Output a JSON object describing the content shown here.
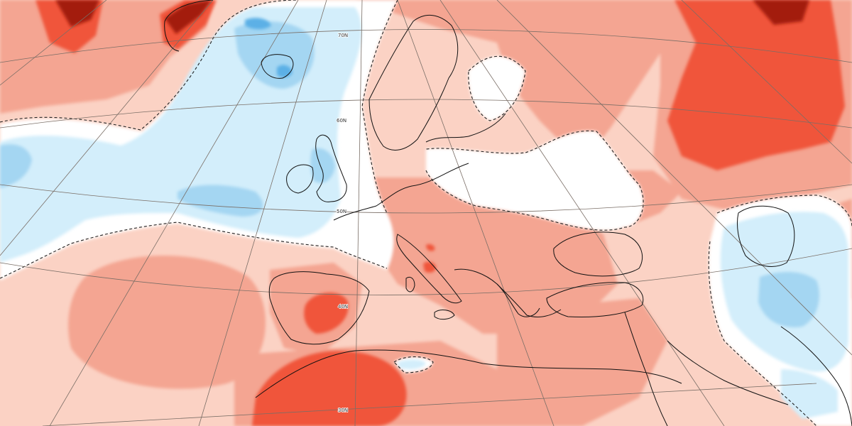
{
  "colors": {
    "anomaly_plus_1": "#fbd2c4",
    "anomaly_plus_2": "#f4a592",
    "anomaly_plus_3": "#f0553a",
    "anomaly_plus_4": "#a31a08",
    "neutral": "#ffffff",
    "anomaly_minus_1": "#d3eefb",
    "anomaly_minus_2": "#a4d6f2",
    "anomaly_minus_3": "#5cb0e6",
    "coastline": "#111111",
    "graticule": "#7a6e66",
    "zero_contour": "#222222"
  },
  "graticule": {
    "latitude_labels": [
      "70N",
      "60N",
      "50N",
      "40N",
      "30N"
    ]
  }
}
